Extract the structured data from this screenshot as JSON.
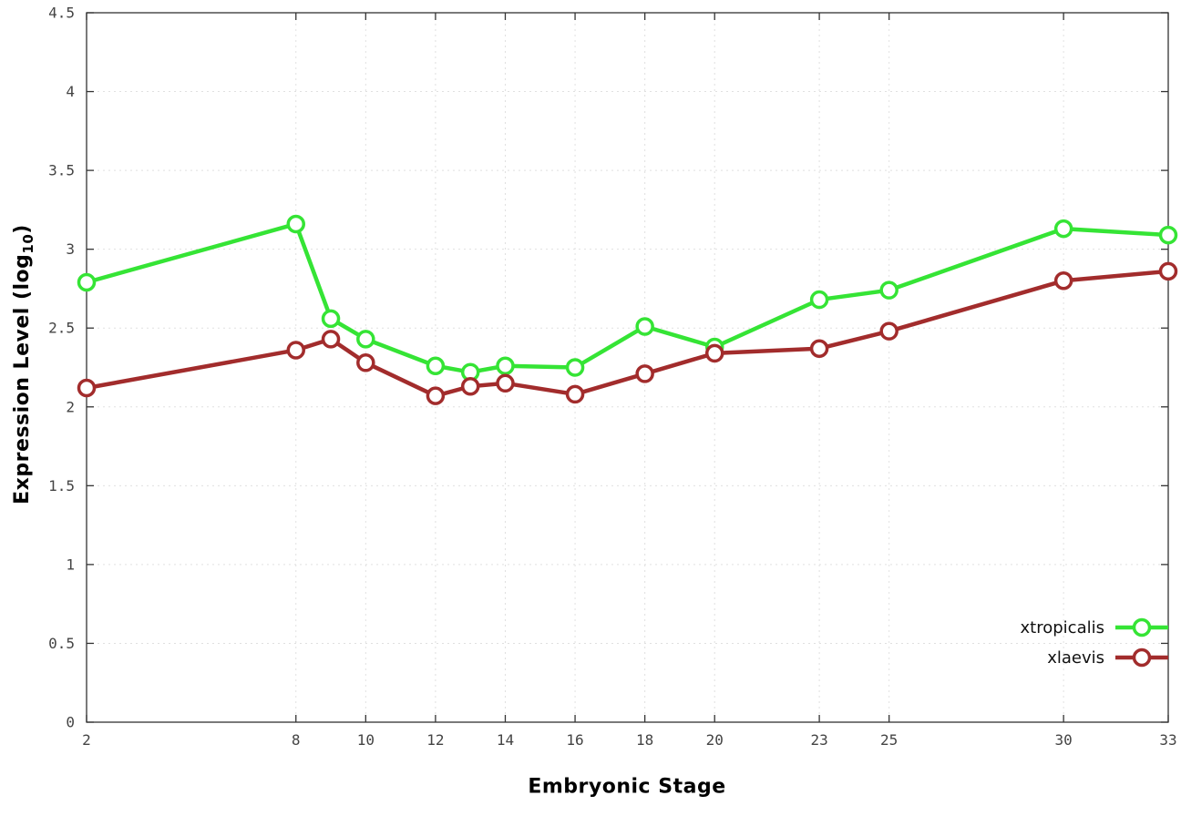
{
  "chart_data": {
    "type": "line",
    "title": "",
    "xlabel": "Embryonic Stage",
    "ylabel": "Expression Level (log10)",
    "ylabel_parts": {
      "prefix": "Expression Level (log",
      "sub": "10",
      "suffix": ")"
    },
    "xlim": [
      2,
      33
    ],
    "ylim": [
      0,
      4.5
    ],
    "x_ticks": [
      2,
      8,
      10,
      12,
      14,
      16,
      18,
      20,
      23,
      25,
      30,
      33
    ],
    "y_ticks": [
      0,
      0.5,
      1,
      1.5,
      2,
      2.5,
      3,
      3.5,
      4,
      4.5
    ],
    "grid": true,
    "legend_position": "bottom-right",
    "x": [
      2,
      8,
      9,
      10,
      12,
      13,
      14,
      16,
      18,
      20,
      23,
      25,
      30,
      33
    ],
    "series": [
      {
        "name": "xtropicalis",
        "color": "#35e435",
        "values": [
          2.79,
          3.16,
          2.56,
          2.43,
          2.26,
          2.22,
          2.26,
          2.25,
          2.51,
          2.38,
          2.68,
          2.74,
          3.13,
          3.09
        ]
      },
      {
        "name": "xlaevis",
        "color": "#a22c2c",
        "values": [
          2.12,
          2.36,
          2.43,
          2.28,
          2.07,
          2.13,
          2.15,
          2.08,
          2.21,
          2.34,
          2.37,
          2.48,
          2.8,
          2.86
        ]
      }
    ],
    "style": {
      "tick_label_color": "#444444",
      "border_color": "#333333",
      "grid_color": "#e0e0e0",
      "marker_fill": "#ffffff"
    }
  }
}
